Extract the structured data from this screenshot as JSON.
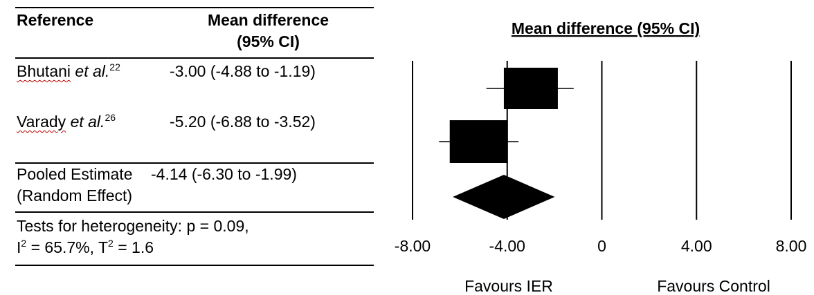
{
  "table": {
    "header": {
      "reference": "Reference",
      "md_line1": "Mean difference",
      "md_line2": "(95% CI)"
    },
    "studies": [
      {
        "author": "Bhutani",
        "etal": "et al.",
        "ref": "22",
        "estimate": "-3.00 (-4.88 to -1.19)"
      },
      {
        "author": "Varady",
        "etal": "et al.",
        "ref": "26",
        "estimate": "-5.20 (-6.88 to -3.52)"
      }
    ],
    "pooled": {
      "label_line1": "Pooled Estimate",
      "label_line2": "(Random Effect)",
      "estimate": "-4.14 (-6.30 to -1.99)"
    },
    "heterogeneity": {
      "line1": "Tests for heterogeneity: p = 0.09,",
      "i2_prefix": "I",
      "i2_value": "= 65.7%, T",
      "t2_value": "= 1.6",
      "sup2": "2"
    }
  },
  "chart_data": {
    "type": "forest",
    "title": "Mean difference (95% CI)",
    "xlim": [
      -8,
      8
    ],
    "ticks": [
      -8,
      -4,
      0,
      4,
      8
    ],
    "tick_labels": [
      "-8.00",
      "-4.00",
      "0",
      "4.00",
      "8.00"
    ],
    "studies": [
      {
        "name": "Bhutani et al.",
        "mean": -3.0,
        "lower": -4.88,
        "upper": -1.19
      },
      {
        "name": "Varady et al.",
        "mean": -5.2,
        "lower": -6.88,
        "upper": -3.52
      }
    ],
    "pooled": {
      "name": "Pooled Estimate (Random Effect)",
      "mean": -4.14,
      "lower": -6.3,
      "upper": -1.99
    },
    "favours_left": "Favours IER",
    "favours_right": "Favours Control",
    "colors": {
      "ink": "#000000",
      "squiggle": "#c00000"
    }
  }
}
